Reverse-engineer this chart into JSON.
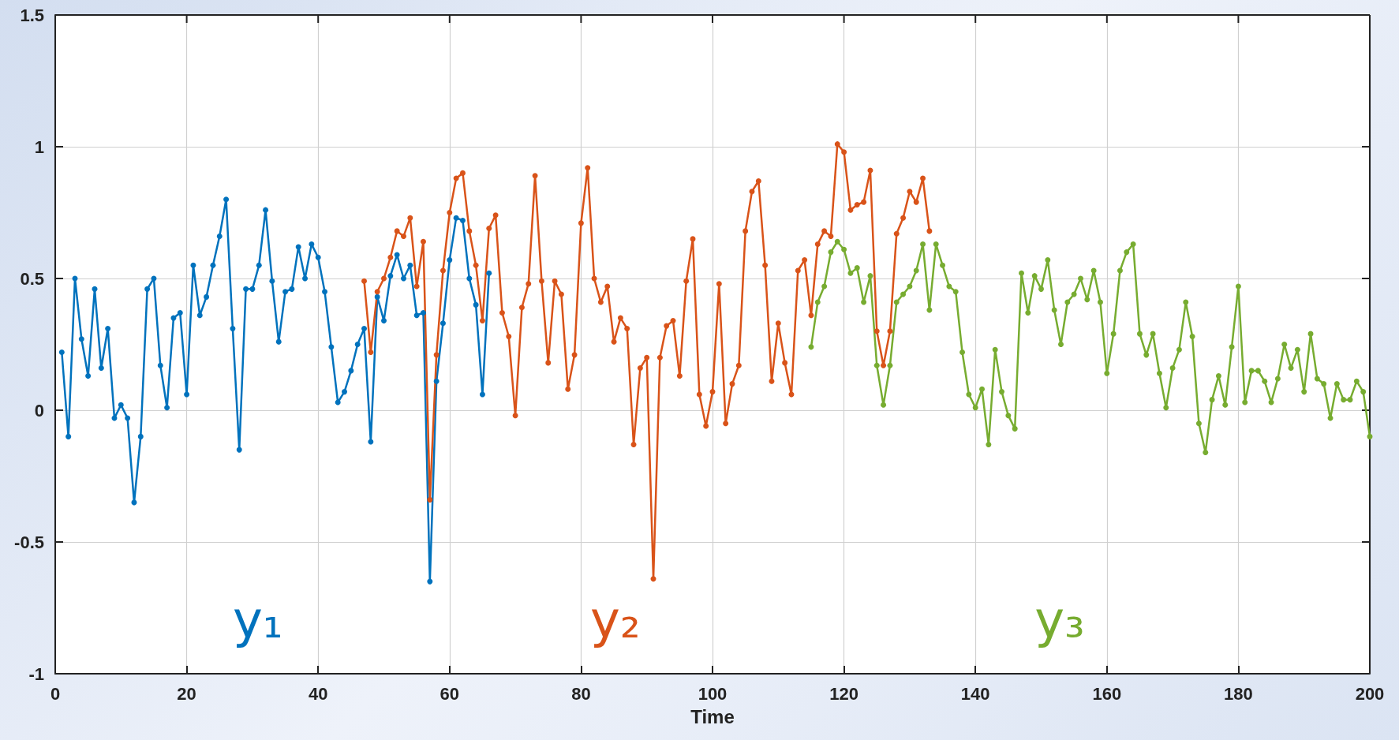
{
  "chart_data": {
    "type": "line",
    "xlabel": "Time",
    "xlim": [
      0,
      200
    ],
    "xticks": [
      0,
      20,
      40,
      60,
      80,
      100,
      120,
      140,
      160,
      180,
      200
    ],
    "ylim": [
      -1,
      1.5
    ],
    "yticks": [
      -1,
      -0.5,
      0,
      0.5,
      1,
      1.5
    ],
    "grid": true,
    "legend": false,
    "marker": "circle",
    "line_style": "solid",
    "series": [
      {
        "name": "y₁",
        "color": "#0072bd",
        "x": [
          1,
          2,
          3,
          4,
          5,
          6,
          7,
          8,
          9,
          10,
          11,
          12,
          13,
          14,
          15,
          16,
          17,
          18,
          19,
          20,
          21,
          22,
          23,
          24,
          25,
          26,
          27,
          28,
          29,
          30,
          31,
          32,
          33,
          34,
          35,
          36,
          37,
          38,
          39,
          40,
          41,
          42,
          43,
          44,
          45,
          46,
          47,
          48,
          49,
          50,
          51,
          52,
          53,
          54,
          55,
          56,
          57,
          58,
          59,
          60,
          61,
          62,
          63,
          64,
          65,
          66
        ],
        "values": [
          0.22,
          -0.1,
          0.5,
          0.27,
          0.13,
          0.46,
          0.16,
          0.31,
          -0.03,
          0.02,
          -0.03,
          -0.35,
          -0.1,
          0.46,
          0.5,
          0.17,
          0.01,
          0.35,
          0.37,
          0.06,
          0.55,
          0.36,
          0.43,
          0.55,
          0.66,
          0.8,
          0.31,
          -0.15,
          0.46,
          0.46,
          0.55,
          0.76,
          0.49,
          0.26,
          0.45,
          0.46,
          0.62,
          0.5,
          0.63,
          0.58,
          0.45,
          0.24,
          0.03,
          0.07,
          0.15,
          0.25,
          0.31,
          -0.12,
          0.43,
          0.34,
          0.51,
          0.59,
          0.5,
          0.55,
          0.36,
          0.37,
          -0.65,
          0.11,
          0.33,
          0.57,
          0.73,
          0.72,
          0.5,
          0.4,
          0.06,
          0.52
        ]
      },
      {
        "name": "y₂",
        "color": "#d95319",
        "x": [
          47,
          48,
          49,
          50,
          51,
          52,
          53,
          54,
          55,
          56,
          57,
          58,
          59,
          60,
          61,
          62,
          63,
          64,
          65,
          66,
          67,
          68,
          69,
          70,
          71,
          72,
          73,
          74,
          75,
          76,
          77,
          78,
          79,
          80,
          81,
          82,
          83,
          84,
          85,
          86,
          87,
          88,
          89,
          90,
          91,
          92,
          93,
          94,
          95,
          96,
          97,
          98,
          99,
          100,
          101,
          102,
          103,
          104,
          105,
          106,
          107,
          108,
          109,
          110,
          111,
          112,
          113,
          114,
          115,
          116,
          117,
          118,
          119,
          120,
          121,
          122,
          123,
          124,
          125,
          126,
          127,
          128,
          129,
          130,
          131,
          132,
          133
        ],
        "values": [
          0.49,
          0.22,
          0.45,
          0.5,
          0.58,
          0.68,
          0.66,
          0.73,
          0.47,
          0.64,
          -0.34,
          0.21,
          0.53,
          0.75,
          0.88,
          0.9,
          0.68,
          0.55,
          0.34,
          0.69,
          0.74,
          0.37,
          0.28,
          -0.02,
          0.39,
          0.48,
          0.89,
          0.49,
          0.18,
          0.49,
          0.44,
          0.08,
          0.21,
          0.71,
          0.92,
          0.5,
          0.41,
          0.47,
          0.26,
          0.35,
          0.31,
          -0.13,
          0.16,
          0.2,
          -0.64,
          0.2,
          0.32,
          0.34,
          0.13,
          0.49,
          0.65,
          0.06,
          -0.06,
          0.07,
          0.48,
          -0.05,
          0.1,
          0.17,
          0.68,
          0.83,
          0.87,
          0.55,
          0.11,
          0.33,
          0.18,
          0.06,
          0.53,
          0.57,
          0.36,
          0.63,
          0.68,
          0.66,
          1.01,
          0.98,
          0.76,
          0.78,
          0.79,
          0.91,
          0.3,
          0.17,
          0.3,
          0.67,
          0.73,
          0.83,
          0.79,
          0.88,
          0.68
        ]
      },
      {
        "name": "y₃",
        "color": "#77ac30",
        "x": [
          115,
          116,
          117,
          118,
          119,
          120,
          121,
          122,
          123,
          124,
          125,
          126,
          127,
          128,
          129,
          130,
          131,
          132,
          133,
          134,
          135,
          136,
          137,
          138,
          139,
          140,
          141,
          142,
          143,
          144,
          145,
          146,
          147,
          148,
          149,
          150,
          151,
          152,
          153,
          154,
          155,
          156,
          157,
          158,
          159,
          160,
          161,
          162,
          163,
          164,
          165,
          166,
          167,
          168,
          169,
          170,
          171,
          172,
          173,
          174,
          175,
          176,
          177,
          178,
          179,
          180,
          181,
          182,
          183,
          184,
          185,
          186,
          187,
          188,
          189,
          190,
          191,
          192,
          193,
          194,
          195,
          196,
          197,
          198,
          199,
          200
        ],
        "values": [
          0.24,
          0.41,
          0.47,
          0.6,
          0.64,
          0.61,
          0.52,
          0.54,
          0.41,
          0.51,
          0.17,
          0.02,
          0.17,
          0.41,
          0.44,
          0.47,
          0.53,
          0.63,
          0.38,
          0.63,
          0.55,
          0.47,
          0.45,
          0.22,
          0.06,
          0.01,
          0.08,
          -0.13,
          0.23,
          0.07,
          -0.02,
          -0.07,
          0.52,
          0.37,
          0.51,
          0.46,
          0.57,
          0.38,
          0.25,
          0.41,
          0.44,
          0.5,
          0.42,
          0.53,
          0.41,
          0.14,
          0.29,
          0.53,
          0.6,
          0.63,
          0.29,
          0.21,
          0.29,
          0.14,
          0.01,
          0.16,
          0.23,
          0.41,
          0.28,
          -0.05,
          -0.16,
          0.04,
          0.13,
          0.02,
          0.24,
          0.47,
          0.03,
          0.15,
          0.15,
          0.11,
          0.03,
          0.12,
          0.25,
          0.16,
          0.23,
          0.07,
          0.29,
          0.12,
          0.1,
          -0.03,
          0.1,
          0.04,
          0.04,
          0.11,
          0.07,
          -0.1
        ]
      }
    ]
  }
}
